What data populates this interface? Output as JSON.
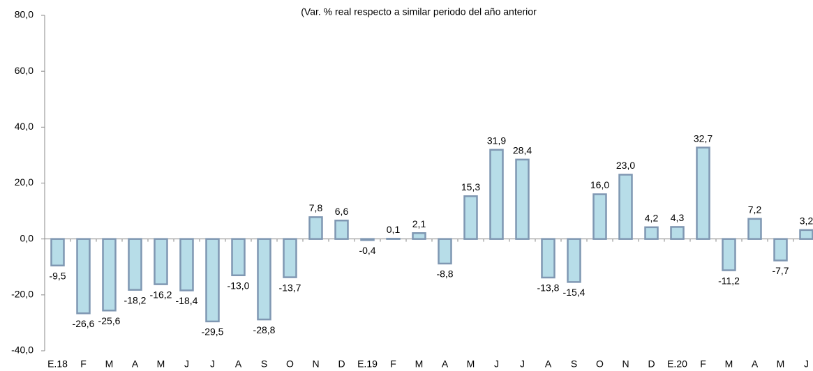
{
  "chart_data": {
    "type": "bar",
    "title": "(Var. % real respecto a similar periodo del año anterior",
    "categories": [
      "E.18",
      "F",
      "M",
      "A",
      "M",
      "J",
      "J",
      "A",
      "S",
      "O",
      "N",
      "D",
      "E.19",
      "F",
      "M",
      "A",
      "M",
      "J",
      "J",
      "A",
      "S",
      "O",
      "N",
      "D",
      "E.20",
      "F",
      "M",
      "A",
      "M",
      "J"
    ],
    "values": [
      -9.5,
      -26.6,
      -25.6,
      -18.2,
      -16.2,
      -18.4,
      -29.5,
      -13.0,
      -28.8,
      -13.7,
      7.8,
      6.6,
      -0.4,
      0.1,
      2.1,
      -8.8,
      15.3,
      31.9,
      28.4,
      -13.8,
      -15.4,
      16.0,
      23.0,
      4.2,
      4.3,
      32.7,
      -11.2,
      7.2,
      -7.7,
      3.2
    ],
    "value_labels": [
      "-9,5",
      "-26,6",
      "-25,6",
      "-18,2",
      "-16,2",
      "-18,4",
      "-29,5",
      "-13,0",
      "-28,8",
      "-13,7",
      "7,8",
      "6,6",
      "-0,4",
      "0,1",
      "2,1",
      "-8,8",
      "15,3",
      "31,9",
      "28,4",
      "-13,8",
      "-15,4",
      "16,0",
      "23,0",
      "4,2",
      "4,3",
      "32,7",
      "-11,2",
      "7,2",
      "-7,7",
      "3,2"
    ],
    "color": "#b7dde8",
    "edge_color": "#7f97b2",
    "ylim": [
      -40,
      80
    ],
    "yticks": [
      {
        "value": -40,
        "label": "-40,0"
      },
      {
        "value": -20,
        "label": "-20,0"
      },
      {
        "value": 0,
        "label": "0,0"
      },
      {
        "value": 20,
        "label": "20,0"
      },
      {
        "value": 40,
        "label": "40,0"
      },
      {
        "value": 60,
        "label": "60,0"
      },
      {
        "value": 80,
        "label": "80,0"
      }
    ],
    "grid": false
  }
}
